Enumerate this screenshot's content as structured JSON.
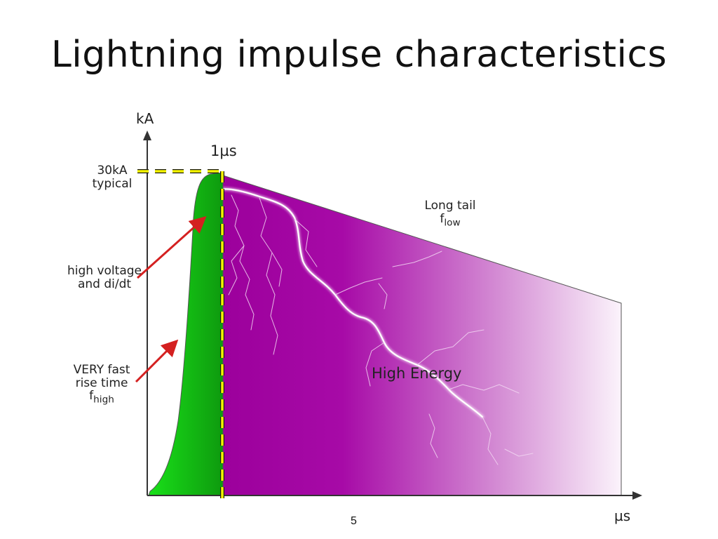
{
  "title": "Lightning impulse characteristics",
  "axes": {
    "y_label": "kA",
    "x_label": "µs"
  },
  "time_marker": "1µs",
  "peak_label": {
    "line1": "30kA",
    "line2": "typical"
  },
  "long_tail": {
    "line1": "Long tail",
    "f_symbol": "f",
    "f_sub": "low"
  },
  "high_voltage": {
    "line1": "high voltage",
    "line2": "and di/dt"
  },
  "fast_rise": {
    "line1": "VERY fast",
    "line2": "rise time",
    "f_symbol": "f",
    "f_sub": "high"
  },
  "energy_label": "High Energy",
  "slide_number": "5",
  "colors": {
    "rise_region": "#11c411",
    "tail_region": "#a500a5",
    "dashed_marker": "#f5f500",
    "arrow": "#d42020"
  }
}
